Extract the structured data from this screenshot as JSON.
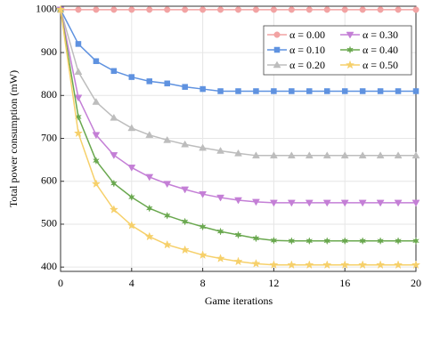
{
  "chart_data": {
    "type": "line",
    "xlabel": "Game iterations",
    "ylabel": "Total power consumption (mW)",
    "x": [
      0,
      1,
      2,
      3,
      4,
      5,
      6,
      7,
      8,
      9,
      10,
      11,
      12,
      13,
      14,
      15,
      16,
      17,
      18,
      19,
      20
    ],
    "xlim": [
      0,
      20
    ],
    "xticks": [
      0,
      4,
      8,
      12,
      16,
      20
    ],
    "ylim": [
      390,
      1008
    ],
    "yticks": [
      400,
      500,
      600,
      700,
      800,
      900,
      1000
    ],
    "grid": true,
    "legend": "upper right",
    "series": [
      {
        "name": "α = 0.00",
        "color": "#f2a3a3",
        "marker": "circle",
        "values": [
          1000,
          1000,
          1000,
          1000,
          1000,
          1000,
          1000,
          1000,
          1000,
          1000,
          1000,
          1000,
          1000,
          1000,
          1000,
          1000,
          1000,
          1000,
          1000,
          1000,
          1000
        ]
      },
      {
        "name": "α = 0.10",
        "color": "#5f92e0",
        "marker": "square",
        "values": [
          1000,
          920,
          880,
          857,
          843,
          833,
          828,
          820,
          815,
          810,
          810,
          810,
          810,
          810,
          810,
          810,
          810,
          810,
          810,
          810,
          810
        ]
      },
      {
        "name": "α = 0.20",
        "color": "#bdbdbd",
        "marker": "triangle-up",
        "values": [
          1000,
          855,
          785,
          748,
          724,
          708,
          696,
          686,
          678,
          671,
          665,
          660,
          660,
          660,
          660,
          660,
          660,
          660,
          660,
          660,
          660
        ]
      },
      {
        "name": "α = 0.30",
        "color": "#c47fd6",
        "marker": "triangle-down",
        "values": [
          1000,
          795,
          708,
          661,
          632,
          610,
          594,
          581,
          570,
          562,
          556,
          552,
          550,
          550,
          550,
          550,
          550,
          550,
          550,
          550,
          550
        ]
      },
      {
        "name": "α = 0.40",
        "color": "#6aa84f",
        "marker": "asterisk",
        "values": [
          1000,
          750,
          648,
          595,
          563,
          537,
          520,
          506,
          494,
          483,
          475,
          467,
          462,
          461,
          461,
          461,
          461,
          461,
          461,
          461,
          461
        ]
      },
      {
        "name": "α = 0.50",
        "color": "#f6d06a",
        "marker": "star",
        "values": [
          1000,
          712,
          594,
          534,
          497,
          471,
          452,
          440,
          428,
          420,
          413,
          408,
          405,
          405,
          405,
          405,
          405,
          405,
          405,
          405,
          405
        ]
      }
    ]
  }
}
